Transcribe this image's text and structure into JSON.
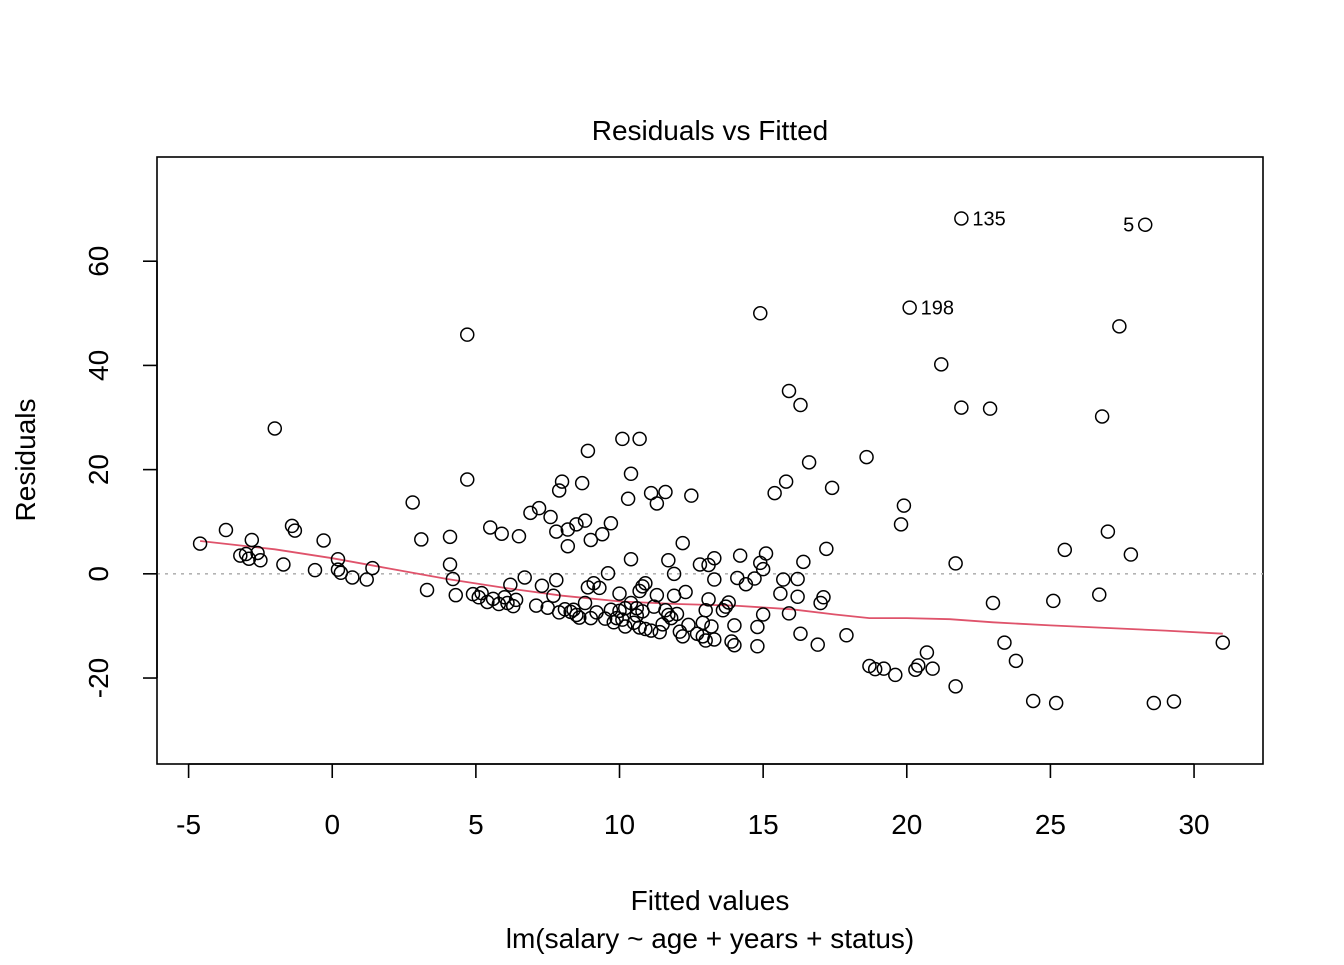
{
  "chart_data": {
    "type": "scatter",
    "title": "Residuals vs Fitted",
    "xlabel": "Fitted values",
    "subtitle": "lm(salary ~ age + years + status)",
    "ylabel": "Residuals",
    "xlim": [
      -6.1,
      32.4
    ],
    "ylim": [
      -36.5,
      80
    ],
    "x_ticks": [
      -5,
      0,
      5,
      10,
      15,
      20,
      25,
      30
    ],
    "x_tick_labels": [
      "-5",
      "0",
      "5",
      "10",
      "15",
      "20",
      "25",
      "30"
    ],
    "y_ticks": [
      -20,
      0,
      20,
      40,
      60
    ],
    "y_tick_labels": [
      "-20",
      "0",
      "20",
      "40",
      "60"
    ],
    "reference_line": {
      "y": 0,
      "style": "dotted",
      "color": "#b3b3b3"
    },
    "smooth_color": "#df536b",
    "grid": false,
    "points": [
      {
        "x": -4.6,
        "y": 5.8
      },
      {
        "x": -3.7,
        "y": 8.4
      },
      {
        "x": -3.2,
        "y": 3.5
      },
      {
        "x": -3.0,
        "y": 3.8
      },
      {
        "x": -2.9,
        "y": 2.9
      },
      {
        "x": -2.8,
        "y": 6.5
      },
      {
        "x": -2.6,
        "y": 4.0
      },
      {
        "x": -2.5,
        "y": 2.6
      },
      {
        "x": -2.0,
        "y": 27.9
      },
      {
        "x": -1.7,
        "y": 1.8
      },
      {
        "x": -1.4,
        "y": 9.2
      },
      {
        "x": -1.3,
        "y": 8.3
      },
      {
        "x": -0.6,
        "y": 0.7
      },
      {
        "x": -0.3,
        "y": 6.4
      },
      {
        "x": 0.2,
        "y": 2.8
      },
      {
        "x": 0.2,
        "y": 0.8
      },
      {
        "x": 0.3,
        "y": 0.2
      },
      {
        "x": 0.7,
        "y": -0.7
      },
      {
        "x": 1.2,
        "y": -1.1
      },
      {
        "x": 1.4,
        "y": 1.1
      },
      {
        "x": 2.8,
        "y": 13.7
      },
      {
        "x": 3.1,
        "y": 6.6
      },
      {
        "x": 3.3,
        "y": -3.1
      },
      {
        "x": 4.1,
        "y": 1.8
      },
      {
        "x": 4.1,
        "y": 7.1
      },
      {
        "x": 4.2,
        "y": -1.0
      },
      {
        "x": 4.3,
        "y": -4.1
      },
      {
        "x": 4.7,
        "y": 18.1
      },
      {
        "x": 4.7,
        "y": 45.9
      },
      {
        "x": 4.9,
        "y": -3.9
      },
      {
        "x": 5.1,
        "y": -4.5
      },
      {
        "x": 5.2,
        "y": -3.7
      },
      {
        "x": 5.4,
        "y": -5.4
      },
      {
        "x": 5.5,
        "y": 8.9
      },
      {
        "x": 5.6,
        "y": -4.8
      },
      {
        "x": 5.8,
        "y": -5.8
      },
      {
        "x": 5.9,
        "y": 7.7
      },
      {
        "x": 6.0,
        "y": -4.5
      },
      {
        "x": 6.1,
        "y": -5.6
      },
      {
        "x": 6.2,
        "y": -2.1
      },
      {
        "x": 6.3,
        "y": -6.2
      },
      {
        "x": 6.4,
        "y": -5.0
      },
      {
        "x": 6.5,
        "y": 7.2
      },
      {
        "x": 6.7,
        "y": -0.7
      },
      {
        "x": 6.9,
        "y": 11.7
      },
      {
        "x": 7.1,
        "y": -6.1
      },
      {
        "x": 7.2,
        "y": 12.6
      },
      {
        "x": 7.3,
        "y": -2.3
      },
      {
        "x": 7.5,
        "y": -6.5
      },
      {
        "x": 7.6,
        "y": 10.9
      },
      {
        "x": 7.7,
        "y": -4.2
      },
      {
        "x": 7.8,
        "y": -1.2
      },
      {
        "x": 7.8,
        "y": 8.1
      },
      {
        "x": 7.9,
        "y": 16.0
      },
      {
        "x": 7.9,
        "y": -7.4
      },
      {
        "x": 8.0,
        "y": 17.7
      },
      {
        "x": 8.1,
        "y": -6.8
      },
      {
        "x": 8.2,
        "y": 5.3
      },
      {
        "x": 8.2,
        "y": 8.5
      },
      {
        "x": 8.3,
        "y": -7.3
      },
      {
        "x": 8.4,
        "y": -6.9
      },
      {
        "x": 8.5,
        "y": -7.9
      },
      {
        "x": 8.5,
        "y": 9.5
      },
      {
        "x": 8.6,
        "y": -8.4
      },
      {
        "x": 8.7,
        "y": 17.4
      },
      {
        "x": 8.8,
        "y": 10.2
      },
      {
        "x": 8.8,
        "y": -5.6
      },
      {
        "x": 8.9,
        "y": -2.6
      },
      {
        "x": 8.9,
        "y": 23.6
      },
      {
        "x": 9.0,
        "y": 6.5
      },
      {
        "x": 9.0,
        "y": -8.5
      },
      {
        "x": 9.1,
        "y": -1.8
      },
      {
        "x": 9.2,
        "y": -7.4
      },
      {
        "x": 9.3,
        "y": -2.7
      },
      {
        "x": 9.4,
        "y": 7.6
      },
      {
        "x": 9.5,
        "y": -8.6
      },
      {
        "x": 9.6,
        "y": 0.1
      },
      {
        "x": 9.7,
        "y": 9.7
      },
      {
        "x": 9.7,
        "y": -6.9
      },
      {
        "x": 9.8,
        "y": -9.3
      },
      {
        "x": 9.9,
        "y": -8.5
      },
      {
        "x": 10.0,
        "y": -3.8
      },
      {
        "x": 10.0,
        "y": -7.1
      },
      {
        "x": 10.1,
        "y": 25.9
      },
      {
        "x": 10.1,
        "y": -8.8
      },
      {
        "x": 10.2,
        "y": -6.6
      },
      {
        "x": 10.2,
        "y": -10.1
      },
      {
        "x": 10.3,
        "y": 14.4
      },
      {
        "x": 10.4,
        "y": -5.6
      },
      {
        "x": 10.4,
        "y": 19.2
      },
      {
        "x": 10.4,
        "y": 2.8
      },
      {
        "x": 10.5,
        "y": -9.4
      },
      {
        "x": 10.6,
        "y": -6.6
      },
      {
        "x": 10.6,
        "y": -8.0
      },
      {
        "x": 10.7,
        "y": -3.3
      },
      {
        "x": 10.7,
        "y": -10.3
      },
      {
        "x": 10.7,
        "y": 25.9
      },
      {
        "x": 10.8,
        "y": -2.4
      },
      {
        "x": 10.8,
        "y": -7.2
      },
      {
        "x": 10.9,
        "y": -1.8
      },
      {
        "x": 10.9,
        "y": -10.6
      },
      {
        "x": 11.1,
        "y": -10.9
      },
      {
        "x": 11.1,
        "y": 15.5
      },
      {
        "x": 11.2,
        "y": -6.3
      },
      {
        "x": 11.3,
        "y": 13.5
      },
      {
        "x": 11.3,
        "y": -4.1
      },
      {
        "x": 11.4,
        "y": -11.2
      },
      {
        "x": 11.5,
        "y": -9.7
      },
      {
        "x": 11.6,
        "y": 15.7
      },
      {
        "x": 11.6,
        "y": -7.0
      },
      {
        "x": 11.7,
        "y": 2.6
      },
      {
        "x": 11.7,
        "y": -7.9
      },
      {
        "x": 11.8,
        "y": -8.5
      },
      {
        "x": 11.9,
        "y": -4.2
      },
      {
        "x": 11.9,
        "y": 0.0
      },
      {
        "x": 12.0,
        "y": -7.7
      },
      {
        "x": 12.1,
        "y": -11.1
      },
      {
        "x": 12.2,
        "y": -12.0
      },
      {
        "x": 12.2,
        "y": 5.9
      },
      {
        "x": 12.3,
        "y": -3.5
      },
      {
        "x": 12.4,
        "y": -9.8
      },
      {
        "x": 12.5,
        "y": 15.0
      },
      {
        "x": 12.7,
        "y": -11.5
      },
      {
        "x": 12.8,
        "y": 1.8
      },
      {
        "x": 12.9,
        "y": -12.0
      },
      {
        "x": 12.9,
        "y": -9.4
      },
      {
        "x": 13.0,
        "y": -7.0
      },
      {
        "x": 13.0,
        "y": -12.8
      },
      {
        "x": 13.1,
        "y": 1.7
      },
      {
        "x": 13.1,
        "y": -4.9
      },
      {
        "x": 13.2,
        "y": -10.1
      },
      {
        "x": 13.3,
        "y": -12.6
      },
      {
        "x": 13.3,
        "y": 3.0
      },
      {
        "x": 13.3,
        "y": -1.1
      },
      {
        "x": 13.6,
        "y": -7.0
      },
      {
        "x": 13.7,
        "y": -6.3
      },
      {
        "x": 13.8,
        "y": -5.5
      },
      {
        "x": 13.9,
        "y": -13.0
      },
      {
        "x": 14.0,
        "y": -9.9
      },
      {
        "x": 14.0,
        "y": -13.7
      },
      {
        "x": 14.1,
        "y": -0.8
      },
      {
        "x": 14.2,
        "y": 3.5
      },
      {
        "x": 14.4,
        "y": -2.0
      },
      {
        "x": 14.7,
        "y": -0.9
      },
      {
        "x": 14.8,
        "y": -10.2
      },
      {
        "x": 14.8,
        "y": -13.9
      },
      {
        "x": 14.9,
        "y": 50.0
      },
      {
        "x": 14.9,
        "y": 2.1
      },
      {
        "x": 15.0,
        "y": 0.9
      },
      {
        "x": 15.0,
        "y": -7.8
      },
      {
        "x": 15.1,
        "y": 3.9
      },
      {
        "x": 15.4,
        "y": 15.5
      },
      {
        "x": 15.6,
        "y": -3.8
      },
      {
        "x": 15.7,
        "y": -1.1
      },
      {
        "x": 15.8,
        "y": 17.7
      },
      {
        "x": 15.9,
        "y": 35.1
      },
      {
        "x": 15.9,
        "y": -7.6
      },
      {
        "x": 16.2,
        "y": -1.0
      },
      {
        "x": 16.2,
        "y": -4.4
      },
      {
        "x": 16.3,
        "y": -11.5
      },
      {
        "x": 16.3,
        "y": 32.4
      },
      {
        "x": 16.4,
        "y": 2.3
      },
      {
        "x": 16.6,
        "y": 21.4
      },
      {
        "x": 16.9,
        "y": -13.6
      },
      {
        "x": 17.0,
        "y": -5.6
      },
      {
        "x": 17.1,
        "y": -4.5
      },
      {
        "x": 17.2,
        "y": 4.8
      },
      {
        "x": 17.4,
        "y": 16.5
      },
      {
        "x": 17.9,
        "y": -11.8
      },
      {
        "x": 18.6,
        "y": 22.4
      },
      {
        "x": 18.7,
        "y": -17.7
      },
      {
        "x": 18.9,
        "y": -18.3
      },
      {
        "x": 19.2,
        "y": -18.2
      },
      {
        "x": 19.6,
        "y": -19.4
      },
      {
        "x": 19.8,
        "y": 9.5
      },
      {
        "x": 19.9,
        "y": 13.1
      },
      {
        "x": 20.1,
        "y": 51.1
      },
      {
        "x": 20.3,
        "y": -18.4
      },
      {
        "x": 20.4,
        "y": -17.6
      },
      {
        "x": 20.7,
        "y": -15.1
      },
      {
        "x": 20.9,
        "y": -18.2
      },
      {
        "x": 21.2,
        "y": 40.2
      },
      {
        "x": 21.7,
        "y": 2.0
      },
      {
        "x": 21.7,
        "y": -21.6
      },
      {
        "x": 21.9,
        "y": 68.2
      },
      {
        "x": 21.9,
        "y": 31.9
      },
      {
        "x": 22.9,
        "y": 31.7
      },
      {
        "x": 23.0,
        "y": -5.6
      },
      {
        "x": 23.4,
        "y": -13.2
      },
      {
        "x": 23.8,
        "y": -16.7
      },
      {
        "x": 24.4,
        "y": -24.4
      },
      {
        "x": 25.1,
        "y": -5.2
      },
      {
        "x": 25.2,
        "y": -24.8
      },
      {
        "x": 25.5,
        "y": 4.6
      },
      {
        "x": 26.7,
        "y": -4.0
      },
      {
        "x": 26.8,
        "y": 30.2
      },
      {
        "x": 27.0,
        "y": 8.1
      },
      {
        "x": 27.4,
        "y": 47.5
      },
      {
        "x": 27.8,
        "y": 3.7
      },
      {
        "x": 28.3,
        "y": 67.0
      },
      {
        "x": 28.6,
        "y": -24.8
      },
      {
        "x": 29.3,
        "y": -24.5
      },
      {
        "x": 31.0,
        "y": -13.2
      }
    ],
    "smooth": [
      {
        "x": -4.6,
        "y": 6.3
      },
      {
        "x": -2.0,
        "y": 4.7
      },
      {
        "x": 0.0,
        "y": 3.0
      },
      {
        "x": 2.0,
        "y": 1.0
      },
      {
        "x": 4.0,
        "y": -1.0
      },
      {
        "x": 6.0,
        "y": -2.7
      },
      {
        "x": 8.0,
        "y": -4.2
      },
      {
        "x": 10.0,
        "y": -5.3
      },
      {
        "x": 12.0,
        "y": -5.8
      },
      {
        "x": 14.0,
        "y": -6.1
      },
      {
        "x": 16.0,
        "y": -6.8
      },
      {
        "x": 17.5,
        "y": -7.8
      },
      {
        "x": 18.7,
        "y": -8.5
      },
      {
        "x": 20.0,
        "y": -8.5
      },
      {
        "x": 21.5,
        "y": -8.7
      },
      {
        "x": 23.0,
        "y": -9.3
      },
      {
        "x": 25.0,
        "y": -9.9
      },
      {
        "x": 27.0,
        "y": -10.4
      },
      {
        "x": 29.0,
        "y": -10.9
      },
      {
        "x": 31.0,
        "y": -11.5
      }
    ],
    "labeled_points": [
      {
        "text": "135",
        "x": 21.9,
        "y": 68.2,
        "side": "right"
      },
      {
        "text": "5",
        "x": 28.3,
        "y": 67.0,
        "side": "left"
      },
      {
        "text": "198",
        "x": 20.1,
        "y": 51.1,
        "side": "right"
      }
    ]
  }
}
